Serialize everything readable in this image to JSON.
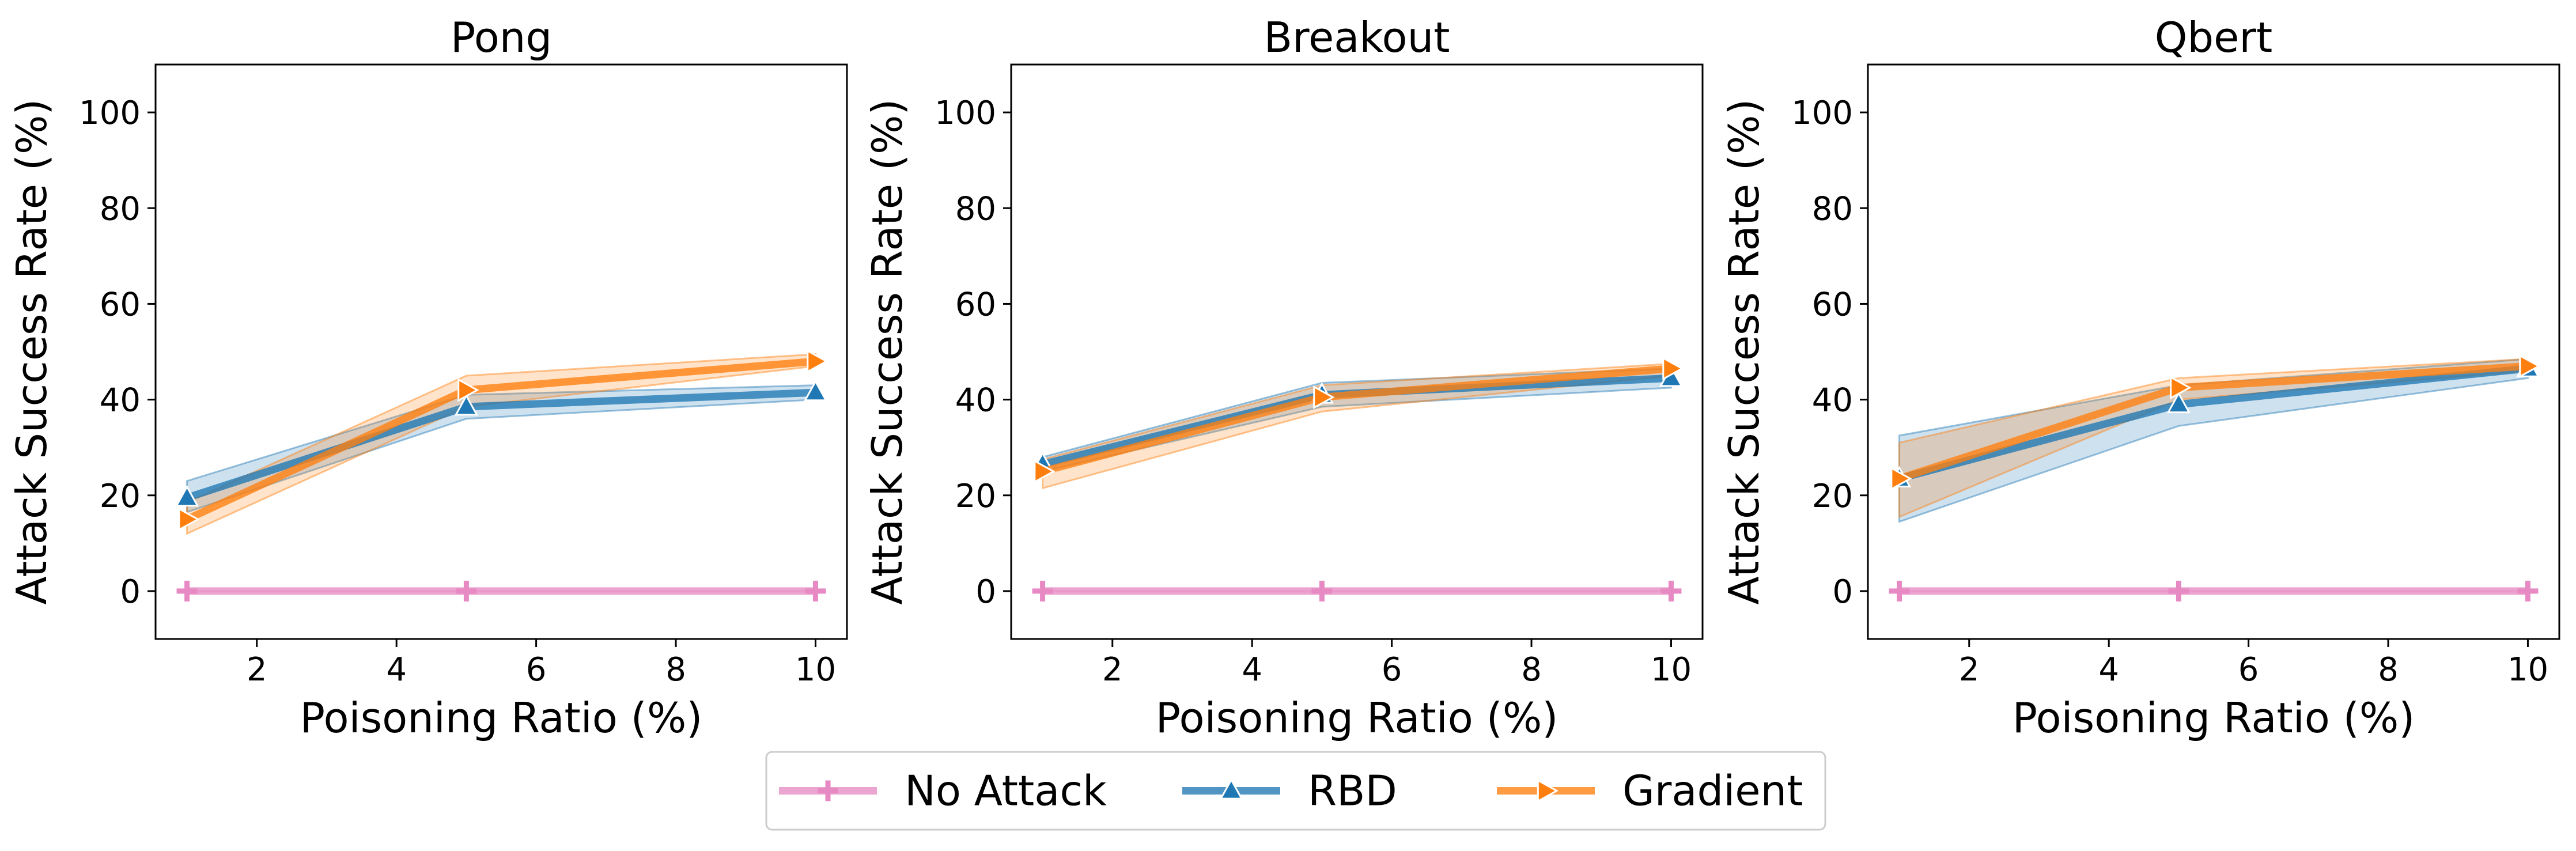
{
  "figure": {
    "legend": [
      {
        "name": "No Attack",
        "color": "#E78AC3",
        "marker": "plus"
      },
      {
        "name": "RBD",
        "color": "#1F77B4",
        "marker": "triangle-up"
      },
      {
        "name": "Gradient",
        "color": "#FF7F0E",
        "marker": "triangle-right"
      }
    ],
    "legend_placement": "bottom-center"
  },
  "chart_data": [
    {
      "type": "line",
      "title": "Pong",
      "xlabel": "Poisoning Ratio (%)",
      "ylabel": "Attack Success Rate (%)",
      "xlim": [
        0.55,
        10.45
      ],
      "ylim": [
        -10,
        110
      ],
      "xticks": [
        2,
        4,
        6,
        8,
        10
      ],
      "yticks": [
        0,
        20,
        40,
        60,
        80,
        100
      ],
      "x": [
        1,
        5,
        10
      ],
      "series": [
        {
          "name": "No Attack",
          "values": [
            0,
            0,
            0
          ],
          "lower": [
            0,
            0,
            0
          ],
          "upper": [
            0,
            0,
            0
          ]
        },
        {
          "name": "RBD",
          "values": [
            19.5,
            38.5,
            41.5
          ],
          "lower": [
            16.5,
            36.0,
            40.0
          ],
          "upper": [
            23.0,
            41.0,
            43.0
          ]
        },
        {
          "name": "Gradient",
          "values": [
            15.0,
            42.0,
            48.0
          ],
          "lower": [
            12.0,
            38.5,
            47.0
          ],
          "upper": [
            18.5,
            45.0,
            49.5
          ]
        }
      ]
    },
    {
      "type": "line",
      "title": "Breakout",
      "xlabel": "Poisoning Ratio (%)",
      "ylabel": "Attack Success Rate (%)",
      "xlim": [
        0.55,
        10.45
      ],
      "ylim": [
        -10,
        110
      ],
      "xticks": [
        2,
        4,
        6,
        8,
        10
      ],
      "yticks": [
        0,
        20,
        40,
        60,
        80,
        100
      ],
      "x": [
        1,
        5,
        10
      ],
      "series": [
        {
          "name": "No Attack",
          "values": [
            0,
            0,
            0
          ],
          "lower": [
            0,
            0,
            0
          ],
          "upper": [
            0,
            0,
            0
          ]
        },
        {
          "name": "RBD",
          "values": [
            26.5,
            41.0,
            44.5
          ],
          "lower": [
            25.0,
            38.5,
            42.5
          ],
          "upper": [
            28.0,
            43.5,
            46.5
          ]
        },
        {
          "name": "Gradient",
          "values": [
            25.0,
            40.5,
            46.5
          ],
          "lower": [
            21.5,
            37.5,
            45.0
          ],
          "upper": [
            27.5,
            43.0,
            47.5
          ]
        }
      ]
    },
    {
      "type": "line",
      "title": "Qbert",
      "xlabel": "Poisoning Ratio (%)",
      "ylabel": "Attack Success Rate (%)",
      "xlim": [
        0.55,
        10.45
      ],
      "ylim": [
        -10,
        110
      ],
      "xticks": [
        2,
        4,
        6,
        8,
        10
      ],
      "yticks": [
        0,
        20,
        40,
        60,
        80,
        100
      ],
      "x": [
        1,
        5,
        10
      ],
      "series": [
        {
          "name": "No Attack",
          "values": [
            0,
            0,
            0
          ],
          "lower": [
            0,
            0,
            0
          ],
          "upper": [
            0,
            0,
            0
          ]
        },
        {
          "name": "RBD",
          "values": [
            23.5,
            39.0,
            46.5
          ],
          "lower": [
            14.5,
            34.5,
            44.5
          ],
          "upper": [
            32.5,
            43.0,
            48.5
          ]
        },
        {
          "name": "Gradient",
          "values": [
            23.5,
            42.5,
            47.0
          ],
          "lower": [
            15.5,
            40.0,
            46.0
          ],
          "upper": [
            31.0,
            44.5,
            48.5
          ]
        }
      ]
    }
  ]
}
